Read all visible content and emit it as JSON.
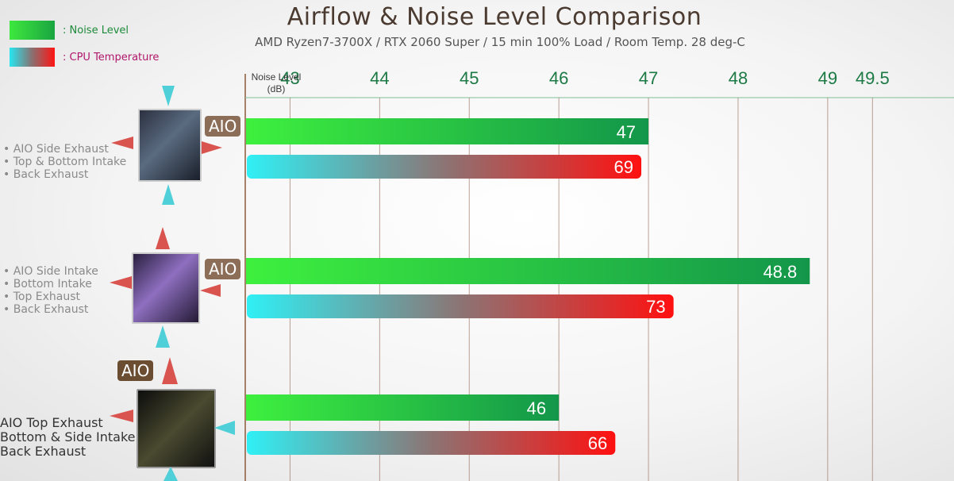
{
  "title": "Airflow & Noise Level Comparison",
  "subtitle": "AMD Ryzen7-3700X / RTX 2060 Super / 15 min 100% Load / Room Temp. 28 deg-C",
  "legend": {
    "noise_label": ": Noise Level",
    "temp_label": ": CPU Temperature"
  },
  "axis": {
    "label_line1": "Noise Level",
    "label_line2": "(dB)"
  },
  "aio_label": "AIO",
  "configs": [
    {
      "desc": [
        "• AIO Side Exhaust",
        "• Top & Bottom Intake",
        "• Back Exhaust"
      ]
    },
    {
      "desc": [
        "• AIO Side Intake",
        "• Bottom Intake",
        "• Top Exhaust",
        "• Back Exhaust"
      ]
    },
    {
      "desc": [
        "AIO Top Exhaust",
        "Bottom & Side Intake",
        "Back Exhaust"
      ]
    }
  ],
  "colors": {
    "noise_start": "#3ef03e",
    "noise_end": "#13964a",
    "temp_start": "#2ff0f5",
    "temp_mid": "#8c7474",
    "temp_end": "#ff1010",
    "axis_tick": "#1d7a45",
    "grid": "#a07a6a"
  },
  "chart_data": {
    "type": "bar",
    "orientation": "horizontal",
    "title": "Airflow & Noise Level Comparison",
    "xlabel": "Noise Level (dB)",
    "xlim": [
      42.5,
      49.5
    ],
    "ticks": [
      43,
      44,
      45,
      46,
      47,
      48,
      49,
      49.5
    ],
    "tick_labels": [
      "43",
      "44",
      "45",
      "46",
      "47",
      "48",
      "49",
      "49.5"
    ],
    "categories": [
      "AIO Side Exhaust",
      "AIO Side Intake",
      "AIO Top Exhaust"
    ],
    "series": [
      {
        "name": "Noise Level",
        "values": [
          47,
          48.8,
          46
        ],
        "labels": [
          "47",
          "48.8",
          "46"
        ]
      },
      {
        "name": "CPU Temperature",
        "values": [
          69,
          73,
          66
        ],
        "labels": [
          "69",
          "73",
          "66"
        ]
      }
    ],
    "temp_bar_ends_on_noise_axis": [
      46.92,
      47.28,
      46.63
    ],
    "grid": true
  }
}
